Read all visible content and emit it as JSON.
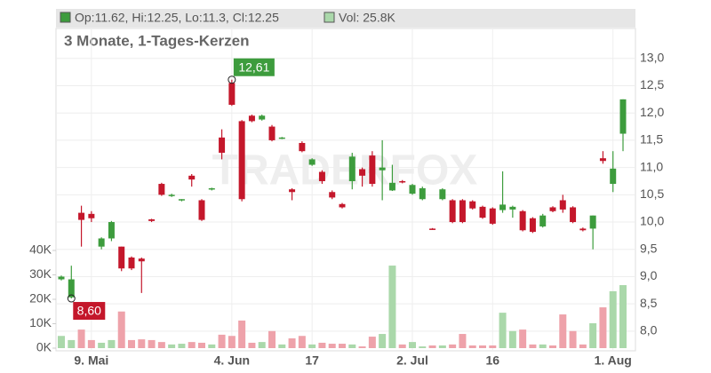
{
  "chart_data": {
    "type": "candlestick",
    "header": {
      "ohlc": "Op:11.62, Hi:12.25, Lo:11.3, Cl:12.25",
      "volume": "Vol: 25.8K"
    },
    "subtitle": "3 Monate, 1-Tages-Kerzen",
    "watermark": "TRADERFOX",
    "high_label": "12,61",
    "low_label": "8,60",
    "categories": [
      null,
      null,
      null,
      "9. Mai",
      null,
      null,
      null,
      null,
      null,
      null,
      null,
      null,
      null,
      null,
      null,
      null,
      null,
      "4. Jun",
      null,
      null,
      null,
      null,
      null,
      null,
      null,
      "17",
      null,
      null,
      null,
      null,
      null,
      null,
      null,
      null,
      null,
      "2. Jul",
      null,
      null,
      null,
      null,
      null,
      null,
      null,
      "16",
      null,
      null,
      null,
      null,
      null,
      null,
      null,
      null,
      null,
      null,
      null,
      "1. Aug",
      null
    ],
    "open": [
      8.95,
      8.62,
      10.17,
      10.15,
      9.55,
      9.7,
      9.55,
      9.35,
      9.33,
      10.05,
      10.7,
      10.48,
      10.4,
      10.85,
      10.4,
      10.6,
      11.55,
      12.55,
      11.85,
      11.95,
      11.88,
      11.75,
      11.53,
      10.6,
      11.45,
      11.05,
      10.92,
      10.55,
      10.33,
      10.75,
      10.97,
      11.22,
      10.95,
      10.58,
      10.75,
      10.52,
      10.42,
      9.88,
      10.42,
      10.4,
      10.4,
      10.38,
      10.28,
      10.25,
      10.22,
      10.23,
      10.2,
      10.07,
      9.92,
      10.27,
      10.4,
      10.27,
      9.88,
      9.88,
      11.17,
      10.7,
      11.62
    ],
    "high": [
      9.02,
      9.2,
      10.3,
      10.2,
      9.72,
      10.02,
      9.55,
      9.37,
      9.35,
      10.06,
      10.72,
      10.52,
      10.42,
      10.88,
      10.42,
      10.63,
      11.7,
      12.61,
      11.87,
      11.97,
      11.97,
      11.78,
      11.56,
      10.62,
      11.48,
      11.17,
      10.95,
      10.58,
      10.35,
      11.27,
      11.0,
      11.3,
      11.5,
      11.05,
      10.77,
      10.7,
      10.65,
      9.89,
      10.62,
      10.42,
      10.42,
      10.4,
      10.3,
      10.27,
      10.93,
      10.3,
      10.22,
      10.09,
      10.15,
      10.29,
      10.5,
      10.29,
      9.9,
      10.12,
      11.3,
      11.3,
      12.25
    ],
    "low": [
      8.93,
      8.6,
      9.55,
      10.0,
      9.5,
      9.65,
      9.1,
      9.12,
      8.7,
      10.0,
      10.48,
      10.46,
      10.38,
      10.65,
      10.02,
      10.58,
      11.15,
      12.13,
      10.38,
      11.83,
      11.86,
      11.48,
      11.52,
      10.4,
      11.28,
      11.03,
      10.7,
      10.42,
      10.25,
      10.6,
      10.65,
      10.65,
      10.4,
      10.57,
      10.71,
      10.5,
      10.4,
      9.86,
      10.4,
      9.98,
      9.98,
      10.23,
      10.06,
      9.95,
      10.17,
      10.08,
      9.83,
      9.8,
      9.9,
      10.18,
      10.17,
      9.98,
      9.83,
      9.5,
      11.07,
      10.55,
      11.3
    ],
    "close": [
      9.0,
      8.95,
      10.04,
      10.07,
      9.7,
      10.0,
      9.15,
      9.15,
      9.28,
      10.02,
      10.5,
      10.5,
      10.42,
      10.78,
      10.04,
      10.62,
      11.27,
      12.15,
      10.42,
      11.85,
      11.95,
      11.5,
      11.55,
      10.55,
      11.3,
      11.15,
      10.75,
      10.45,
      10.27,
      11.2,
      10.85,
      10.7,
      11.0,
      10.72,
      10.73,
      10.68,
      10.62,
      9.87,
      10.6,
      10.0,
      10.0,
      10.25,
      10.08,
      9.97,
      10.32,
      10.28,
      9.85,
      9.82,
      10.12,
      10.2,
      10.23,
      10.0,
      9.85,
      10.12,
      11.12,
      10.98,
      12.25
    ],
    "volume": [
      5000,
      3300,
      7600,
      3300,
      2200,
      3300,
      15000,
      3300,
      3600,
      3300,
      2500,
      1500,
      1800,
      2500,
      2200,
      1500,
      5500,
      5000,
      11300,
      2200,
      2500,
      7000,
      1500,
      4000,
      5000,
      1500,
      2200,
      1800,
      1800,
      1500,
      700,
      4700,
      5800,
      33800,
      1500,
      2500,
      700,
      1100,
      1100,
      1500,
      5800,
      1100,
      1100,
      1100,
      14500,
      7000,
      7600,
      1500,
      1500,
      1100,
      13800,
      7000,
      1500,
      10200,
      16700,
      23300,
      25800
    ],
    "up_color": "#3d9c3d",
    "down_color": "#c4172b",
    "volume_up_color": "#aad8aa",
    "volume_down_color": "#eea2aa",
    "ylim": [
      7.64,
      13.55
    ],
    "yticks": [
      {
        "value": 8,
        "label": "8,0"
      },
      {
        "value": 8.5,
        "label": "8,5"
      },
      {
        "value": 9,
        "label": "9,0"
      },
      {
        "value": 9.5,
        "label": "9,5"
      },
      {
        "value": 10,
        "label": "10,0"
      },
      {
        "value": 10.5,
        "label": "10,5"
      },
      {
        "value": 11,
        "label": "11,0"
      },
      {
        "value": 11.5,
        "label": "11,5"
      },
      {
        "value": 12,
        "label": "12,0"
      },
      {
        "value": 12.5,
        "label": "12,5"
      },
      {
        "value": 13,
        "label": "13,0"
      }
    ],
    "y2lim": [
      0,
      130000
    ],
    "y2ticks": [
      {
        "value": 0,
        "label": "0K"
      },
      {
        "value": 10000,
        "label": "10K"
      },
      {
        "value": 20000,
        "label": "20K"
      },
      {
        "value": 30000,
        "label": "30K"
      },
      {
        "value": 40000,
        "label": "40K"
      }
    ],
    "grid": true
  }
}
